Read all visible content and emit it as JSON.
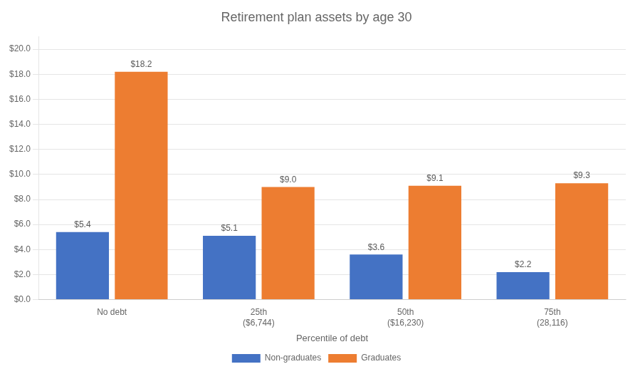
{
  "chart_data": {
    "type": "bar",
    "title": "Retirement plan assets by age 30",
    "x_label": "Percentile of debt",
    "categories": [
      "No debt",
      "25th\n($6,744)",
      "50th\n($16,230)",
      "75th\n(28,116)"
    ],
    "series": [
      {
        "name": "Non-graduates",
        "color": "#4472C4",
        "values": [
          5.4,
          5.1,
          3.6,
          2.2
        ],
        "value_labels": [
          "$5.4",
          "$5.1",
          "$3.6",
          "$2.2"
        ]
      },
      {
        "name": "Graduates",
        "color": "#ED7D31",
        "values": [
          18.2,
          9.0,
          9.1,
          9.3
        ],
        "value_labels": [
          "$18.2",
          "$9.0",
          "$9.1",
          "$9.3"
        ]
      }
    ],
    "ylim": [
      0,
      21
    ],
    "yticks": [
      {
        "value": 0.0,
        "label": "$0.0"
      },
      {
        "value": 2.0,
        "label": "$2.0"
      },
      {
        "value": 4.0,
        "label": "$4.0"
      },
      {
        "value": 6.0,
        "label": "$6.0"
      },
      {
        "value": 8.0,
        "label": "$8.0"
      },
      {
        "value": 10.0,
        "label": "$10.0"
      },
      {
        "value": 12.0,
        "label": "$12.0"
      },
      {
        "value": 14.0,
        "label": "$14.0"
      },
      {
        "value": 16.0,
        "label": "$16.0"
      },
      {
        "value": 18.0,
        "label": "$18.0"
      },
      {
        "value": 20.0,
        "label": "$20.0"
      }
    ],
    "grid": true,
    "legend": "bottom",
    "data_labels": true
  }
}
